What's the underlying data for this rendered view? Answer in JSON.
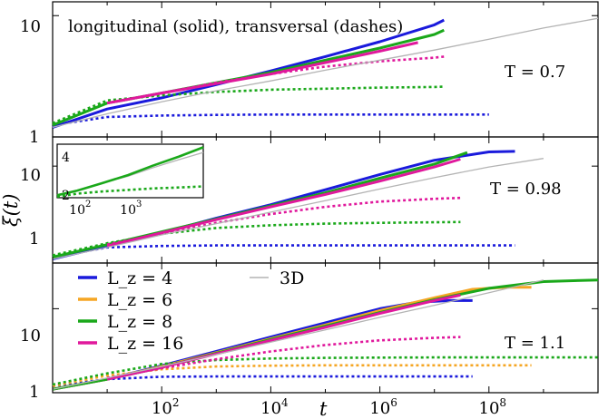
{
  "chart_data": {
    "type": "line",
    "xlabel": "t",
    "ylabel": "ξ(t)",
    "x_scale": "log",
    "y_scale": "log",
    "xlim": [
      1,
      10000000000.0
    ],
    "x_tick_labels": [
      "10^2",
      "10^4",
      "10^6",
      "10^8"
    ],
    "legend": {
      "placement": "top-left of bottom panel",
      "entries": [
        {
          "label": "L_z = 4",
          "color": "#1a1adc"
        },
        {
          "label": "L_z = 6",
          "color": "#f5a623"
        },
        {
          "label": "L_z = 8",
          "color": "#1aa81a"
        },
        {
          "label": "L_z = 16",
          "color": "#e0189c"
        },
        {
          "label": "3D",
          "color": "#b4b4b4"
        }
      ]
    },
    "panels": [
      {
        "id": "top",
        "annotation_text": "longitudinal (solid), transversal (dashes)",
        "temperature_label": "T = 0.7",
        "ylim": [
          1,
          13
        ],
        "y_tick_labels": [
          "1",
          "10"
        ],
        "series": [
          {
            "lz": "4",
            "kind": "longitudinal",
            "color": "#1a1adc",
            "x": [
              1,
              10,
              100,
              1000,
              10000,
              100000,
              1000000,
              10000000,
              15000000
            ],
            "y": [
              1.2,
              1.7,
              2.1,
              2.7,
              3.5,
              4.6,
              6.1,
              8.4,
              9.2
            ]
          },
          {
            "lz": "4",
            "kind": "transversal",
            "color": "#1a1adc",
            "x": [
              1,
              10,
              100,
              1000,
              10000,
              100000,
              1000000,
              10000000,
              100000000
            ],
            "y": [
              1.25,
              1.46,
              1.5,
              1.52,
              1.53,
              1.53,
              1.53,
              1.53,
              1.53
            ]
          },
          {
            "lz": "8",
            "kind": "longitudinal",
            "color": "#1aa81a",
            "x": [
              1,
              10,
              100,
              1000,
              10000,
              100000,
              1000000,
              10000000,
              15000000
            ],
            "y": [
              1.25,
              1.9,
              2.3,
              2.8,
              3.4,
              4.3,
              5.4,
              7.0,
              7.6
            ]
          },
          {
            "lz": "8",
            "kind": "transversal",
            "color": "#1aa81a",
            "x": [
              1,
              10,
              100,
              1000,
              10000,
              100000,
              1000000,
              10000000,
              15000000
            ],
            "y": [
              1.3,
              2.0,
              2.2,
              2.35,
              2.45,
              2.5,
              2.55,
              2.58,
              2.6
            ]
          },
          {
            "lz": "16",
            "kind": "longitudinal",
            "color": "#e0189c",
            "x": [
              10,
              100,
              1000,
              10000,
              100000,
              1000000,
              5000000
            ],
            "y": [
              1.9,
              2.3,
              2.75,
              3.3,
              4.1,
              5.1,
              6.0
            ]
          },
          {
            "lz": "16",
            "kind": "transversal",
            "color": "#e0189c",
            "x": [
              10,
              100,
              1000,
              10000,
              100000,
              1000000,
              10000000,
              15000000
            ],
            "y": [
              1.9,
              2.3,
              2.8,
              3.3,
              3.8,
              4.2,
              4.5,
              4.6
            ]
          },
          {
            "lz": "3D",
            "kind": "longitudinal",
            "color": "#b4b4b4",
            "x": [
              1,
              10,
              100,
              1000,
              10000,
              100000,
              1000000,
              10000000,
              100000000,
              1000000000,
              10000000000
            ],
            "y": [
              1.2,
              1.55,
              1.95,
              2.4,
              2.9,
              3.55,
              4.3,
              5.2,
              6.4,
              7.9,
              9.5
            ]
          }
        ]
      },
      {
        "id": "middle",
        "temperature_label": "T = 0.98",
        "ylim": [
          1,
          20
        ],
        "y_tick_labels": [
          "1",
          "10"
        ],
        "series": [
          {
            "lz": "4",
            "kind": "longitudinal",
            "color": "#1a1adc",
            "x": [
              1,
              10,
              100,
              1000,
              10000,
              100000,
              1000000,
              10000000,
              100000000,
              300000000
            ],
            "y": [
              1.1,
              1.5,
              2.05,
              2.9,
              4.0,
              5.7,
              8.2,
              11.5,
              14.0,
              14.2
            ]
          },
          {
            "lz": "4",
            "kind": "transversal",
            "color": "#1a1adc",
            "x": [
              1,
              10,
              100,
              1000,
              10000,
              100000,
              1000000,
              10000000,
              100000000,
              300000000
            ],
            "y": [
              1.15,
              1.45,
              1.5,
              1.52,
              1.52,
              1.52,
              1.52,
              1.52,
              1.52,
              1.52
            ]
          },
          {
            "lz": "8",
            "kind": "longitudinal",
            "color": "#1aa81a",
            "x": [
              1,
              10,
              100,
              1000,
              10000,
              100000,
              1000000,
              10000000,
              40000000
            ],
            "y": [
              1.15,
              1.55,
              2.1,
              2.85,
              3.9,
              5.3,
              7.5,
              10.5,
              13.8
            ]
          },
          {
            "lz": "8",
            "kind": "transversal",
            "color": "#1aa81a",
            "x": [
              1,
              10,
              100,
              1000,
              10000,
              100000,
              1000000,
              10000000,
              30000000
            ],
            "y": [
              1.2,
              1.6,
              2.0,
              2.3,
              2.45,
              2.55,
              2.6,
              2.63,
              2.65
            ]
          },
          {
            "lz": "16",
            "kind": "longitudinal",
            "color": "#e0189c",
            "x": [
              10,
              100,
              1000,
              10000,
              100000,
              1000000,
              10000000,
              30000000
            ],
            "y": [
              1.5,
              2.05,
              2.8,
              3.8,
              5.1,
              7.0,
              9.8,
              11.8
            ]
          },
          {
            "lz": "16",
            "kind": "transversal",
            "color": "#e0189c",
            "x": [
              10,
              100,
              1000,
              10000,
              100000,
              1000000,
              10000000,
              30000000
            ],
            "y": [
              1.55,
              2.0,
              2.6,
              3.2,
              3.8,
              4.3,
              4.6,
              4.7
            ]
          },
          {
            "lz": "3D",
            "kind": "longitudinal",
            "color": "#b4b4b4",
            "x": [
              1,
              10,
              100,
              1000,
              10000,
              100000,
              1000000,
              10000000,
              100000000,
              1000000000
            ],
            "y": [
              1.1,
              1.45,
              1.95,
              2.55,
              3.35,
              4.4,
              5.8,
              7.6,
              9.8,
              12.0
            ]
          }
        ]
      },
      {
        "id": "bottom",
        "temperature_label": "T = 1.1",
        "ylim": [
          1,
          35
        ],
        "y_tick_labels": [
          "1",
          "10"
        ],
        "series": [
          {
            "lz": "4",
            "kind": "longitudinal",
            "color": "#1a1adc",
            "x": [
              1,
              10,
              100,
              1000,
              10000,
              100000,
              1000000,
              5000000,
              20000000,
              50000000
            ],
            "y": [
              1.1,
              1.45,
              2.1,
              3.1,
              4.6,
              6.8,
              10.0,
              12.0,
              12.5,
              12.5
            ]
          },
          {
            "lz": "4",
            "kind": "transversal",
            "color": "#1a1adc",
            "x": [
              1,
              10,
              100,
              1000,
              10000,
              100000,
              1000000,
              10000000,
              50000000
            ],
            "y": [
              1.2,
              1.45,
              1.55,
              1.56,
              1.56,
              1.56,
              1.56,
              1.56,
              1.56
            ]
          },
          {
            "lz": "6",
            "kind": "longitudinal",
            "color": "#f5a623",
            "x": [
              1,
              10,
              100,
              1000,
              10000,
              100000,
              1000000,
              10000000,
              50000000,
              200000000,
              600000000
            ],
            "y": [
              1.1,
              1.45,
              2.05,
              3.0,
              4.4,
              6.4,
              9.5,
              13.5,
              17.0,
              18.0,
              18.0
            ]
          },
          {
            "lz": "6",
            "kind": "transversal",
            "color": "#f5a623",
            "x": [
              1,
              10,
              100,
              1000,
              10000,
              100000,
              1000000,
              10000000,
              100000000,
              600000000
            ],
            "y": [
              1.2,
              1.6,
              1.9,
              2.05,
              2.1,
              2.12,
              2.12,
              2.12,
              2.12,
              2.12
            ]
          },
          {
            "lz": "8",
            "kind": "longitudinal",
            "color": "#1aa81a",
            "x": [
              1,
              10,
              100,
              1000,
              10000,
              100000,
              1000000,
              10000000,
              100000000,
              1000000000,
              10000000000
            ],
            "y": [
              1.1,
              1.45,
              2.0,
              2.95,
              4.3,
              6.2,
              9.0,
              12.8,
              17.5,
              21.0,
              22.0
            ]
          },
          {
            "lz": "8",
            "kind": "transversal",
            "color": "#1aa81a",
            "x": [
              1,
              10,
              100,
              1000,
              10000,
              100000,
              1000000,
              10000000,
              100000000,
              1000000000,
              10000000000
            ],
            "y": [
              1.25,
              1.7,
              2.2,
              2.45,
              2.55,
              2.6,
              2.62,
              2.63,
              2.63,
              2.63,
              2.63
            ]
          },
          {
            "lz": "16",
            "kind": "longitudinal",
            "color": "#e0189c",
            "x": [
              10,
              100,
              1000,
              10000,
              100000,
              1000000,
              10000000,
              30000000
            ],
            "y": [
              1.45,
              2.0,
              2.9,
              4.2,
              6.0,
              8.8,
              12.5,
              14.5
            ]
          },
          {
            "lz": "16",
            "kind": "transversal",
            "color": "#e0189c",
            "x": [
              10,
              100,
              1000,
              10000,
              100000,
              1000000,
              10000000,
              30000000
            ],
            "y": [
              1.5,
              1.95,
              2.5,
              3.1,
              3.7,
              4.2,
              4.5,
              4.6
            ]
          },
          {
            "lz": "3D",
            "kind": "longitudinal",
            "color": "#b4b4b4",
            "x": [
              1,
              10,
              100,
              1000,
              10000,
              100000,
              1000000,
              10000000,
              100000000,
              1000000000
            ],
            "y": [
              1.1,
              1.5,
              2.05,
              2.85,
              4.0,
              5.6,
              7.9,
              11.0,
              15.5,
              22.0
            ]
          }
        ]
      }
    ],
    "inset": {
      "panel": "middle",
      "x_scale": "log",
      "y_scale": "linear",
      "xlim": [
        40,
        30000
      ],
      "ylim": [
        2,
        4.6
      ],
      "x_tick_labels": [
        "10^2",
        "10^3"
      ],
      "y_tick_labels": [
        "2",
        "4"
      ],
      "series": [
        {
          "lz": "3D",
          "kind": "longitudinal",
          "color": "#b4b4b4",
          "x": [
            40,
            100,
            300,
            1000,
            3000,
            10000,
            30000
          ],
          "y": [
            2.15,
            2.35,
            2.7,
            3.05,
            3.45,
            3.85,
            4.2
          ]
        },
        {
          "lz": "8",
          "kind": "longitudinal",
          "color": "#1aa81a",
          "x": [
            40,
            100,
            300,
            1000,
            3000,
            10000,
            30000
          ],
          "y": [
            2.12,
            2.35,
            2.7,
            3.1,
            3.55,
            4.0,
            4.45
          ]
        },
        {
          "lz": "8",
          "kind": "transversal",
          "color": "#1aa81a",
          "x": [
            40,
            100,
            300,
            1000,
            3000,
            10000,
            30000
          ],
          "y": [
            2.05,
            2.2,
            2.3,
            2.38,
            2.45,
            2.5,
            2.55
          ]
        }
      ]
    }
  }
}
